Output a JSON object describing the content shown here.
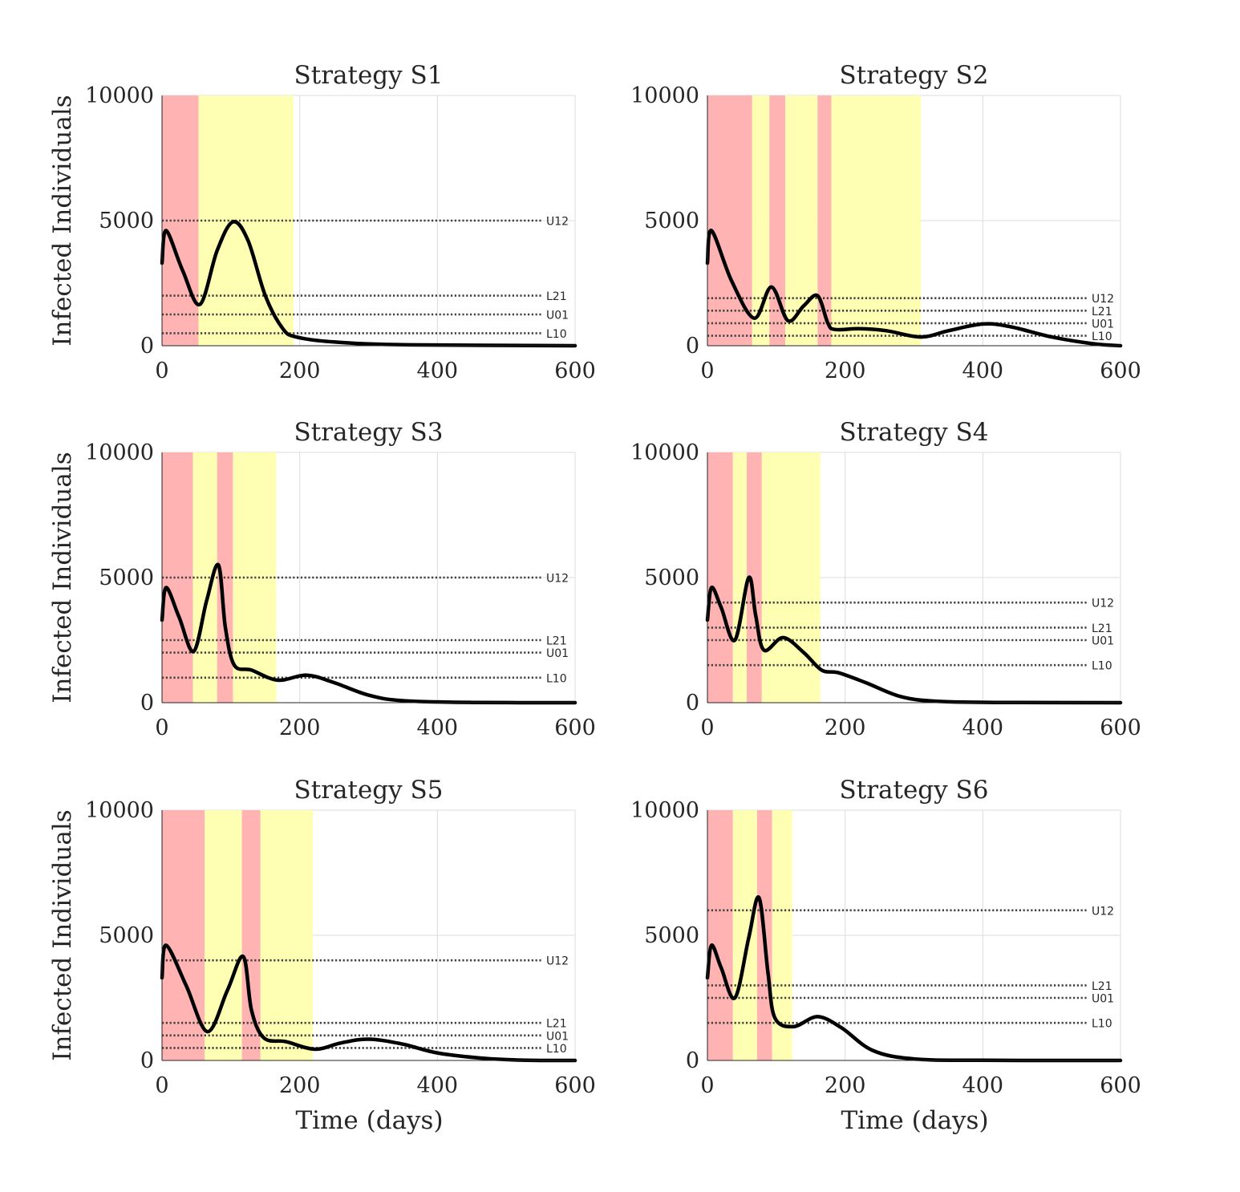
{
  "figure": {
    "xlabel": "Time (days)",
    "ylabel": "Infected Individuals"
  },
  "colors": {
    "strict_band": "#ffb3b3",
    "moderate_band": "#ffffb3",
    "curve": "#000000",
    "threshold": "#404040",
    "grid": "#dcdcdc"
  },
  "chart_data": [
    {
      "type": "line",
      "title": "Strategy S1",
      "xlim": [
        0,
        600
      ],
      "ylim": [
        0,
        10000
      ],
      "xticks": [
        0,
        200,
        400,
        600
      ],
      "yticks": [
        0,
        5000,
        10000
      ],
      "grid": true,
      "bands": [
        {
          "x0": 0,
          "x1": 53,
          "level": "strict"
        },
        {
          "x0": 53,
          "x1": 191,
          "level": "moderate"
        }
      ],
      "thresholds": [
        {
          "label": "U12",
          "value": 5000
        },
        {
          "label": "L21",
          "value": 2000
        },
        {
          "label": "U01",
          "value": 1250
        },
        {
          "label": "L10",
          "value": 500
        }
      ],
      "series": [
        {
          "x": [
            0,
            6,
            30,
            55,
            80,
            103,
            125,
            150,
            175,
            195,
            250,
            350,
            600
          ],
          "y": [
            3300,
            4600,
            3000,
            1650,
            3800,
            4950,
            4200,
            2000,
            700,
            350,
            150,
            40,
            0
          ]
        }
      ]
    },
    {
      "type": "line",
      "title": "Strategy S2",
      "xlim": [
        0,
        600
      ],
      "ylim": [
        0,
        10000
      ],
      "xticks": [
        0,
        200,
        400,
        600
      ],
      "yticks": [
        0,
        5000,
        10000
      ],
      "grid": true,
      "bands": [
        {
          "x0": 0,
          "x1": 65,
          "level": "strict"
        },
        {
          "x0": 65,
          "x1": 90,
          "level": "moderate"
        },
        {
          "x0": 90,
          "x1": 113,
          "level": "strict"
        },
        {
          "x0": 113,
          "x1": 160,
          "level": "moderate"
        },
        {
          "x0": 160,
          "x1": 180,
          "level": "strict"
        },
        {
          "x0": 180,
          "x1": 310,
          "level": "moderate"
        }
      ],
      "thresholds": [
        {
          "label": "U12",
          "value": 1900
        },
        {
          "label": "L21",
          "value": 1400
        },
        {
          "label": "U01",
          "value": 900
        },
        {
          "label": "L10",
          "value": 400
        }
      ],
      "series": [
        {
          "x": [
            0,
            6,
            35,
            68,
            93,
            117,
            140,
            160,
            175,
            185,
            220,
            260,
            310,
            350,
            400,
            440,
            500,
            560,
            600
          ],
          "y": [
            3300,
            4600,
            2600,
            1100,
            2350,
            1000,
            1600,
            2000,
            900,
            650,
            680,
            600,
            350,
            600,
            870,
            760,
            350,
            80,
            0
          ]
        }
      ]
    },
    {
      "type": "line",
      "title": "Strategy S3",
      "xlim": [
        0,
        600
      ],
      "ylim": [
        0,
        10000
      ],
      "xticks": [
        0,
        200,
        400,
        600
      ],
      "yticks": [
        0,
        5000,
        10000
      ],
      "grid": true,
      "bands": [
        {
          "x0": 0,
          "x1": 45,
          "level": "strict"
        },
        {
          "x0": 45,
          "x1": 80,
          "level": "moderate"
        },
        {
          "x0": 80,
          "x1": 103,
          "level": "strict"
        },
        {
          "x0": 103,
          "x1": 166,
          "level": "moderate"
        }
      ],
      "thresholds": [
        {
          "label": "U12",
          "value": 5000
        },
        {
          "label": "L21",
          "value": 2500
        },
        {
          "label": "U01",
          "value": 2000
        },
        {
          "label": "L10",
          "value": 1000
        }
      ],
      "series": [
        {
          "x": [
            0,
            6,
            25,
            46,
            65,
            82,
            92,
            105,
            130,
            168,
            210,
            250,
            300,
            350,
            450,
            600
          ],
          "y": [
            3300,
            4600,
            3400,
            2050,
            4100,
            5500,
            3000,
            1500,
            1300,
            900,
            1100,
            800,
            300,
            80,
            10,
            0
          ]
        }
      ]
    },
    {
      "type": "line",
      "title": "Strategy S4",
      "xlim": [
        0,
        600
      ],
      "ylim": [
        0,
        10000
      ],
      "xticks": [
        0,
        200,
        400,
        600
      ],
      "yticks": [
        0,
        5000,
        10000
      ],
      "grid": true,
      "bands": [
        {
          "x0": 0,
          "x1": 37,
          "level": "strict"
        },
        {
          "x0": 37,
          "x1": 57,
          "level": "moderate"
        },
        {
          "x0": 57,
          "x1": 79,
          "level": "strict"
        },
        {
          "x0": 79,
          "x1": 164,
          "level": "moderate"
        }
      ],
      "thresholds": [
        {
          "label": "U12",
          "value": 4000
        },
        {
          "label": "L21",
          "value": 3000
        },
        {
          "label": "U01",
          "value": 2500
        },
        {
          "label": "L10",
          "value": 1500
        }
      ],
      "series": [
        {
          "x": [
            0,
            6,
            20,
            40,
            60,
            70,
            82,
            110,
            140,
            166,
            190,
            230,
            280,
            330,
            420,
            600
          ],
          "y": [
            3300,
            4600,
            3800,
            2500,
            5000,
            3500,
            2100,
            2600,
            2000,
            1300,
            1200,
            800,
            250,
            60,
            10,
            0
          ]
        }
      ]
    },
    {
      "type": "line",
      "title": "Strategy S5",
      "xlim": [
        0,
        600
      ],
      "ylim": [
        0,
        10000
      ],
      "xticks": [
        0,
        200,
        400,
        600
      ],
      "yticks": [
        0,
        5000,
        10000
      ],
      "grid": true,
      "bands": [
        {
          "x0": 0,
          "x1": 62,
          "level": "strict"
        },
        {
          "x0": 62,
          "x1": 116,
          "level": "moderate"
        },
        {
          "x0": 116,
          "x1": 143,
          "level": "strict"
        },
        {
          "x0": 143,
          "x1": 219,
          "level": "moderate"
        }
      ],
      "thresholds": [
        {
          "label": "U12",
          "value": 4000
        },
        {
          "label": "L21",
          "value": 1500
        },
        {
          "label": "U01",
          "value": 1000
        },
        {
          "label": "L10",
          "value": 500
        }
      ],
      "series": [
        {
          "x": [
            0,
            6,
            35,
            66,
            95,
            118,
            130,
            148,
            180,
            222,
            260,
            300,
            350,
            400,
            470,
            530,
            600
          ],
          "y": [
            3300,
            4600,
            3000,
            1150,
            2800,
            4150,
            2000,
            900,
            750,
            450,
            700,
            850,
            650,
            300,
            80,
            10,
            0
          ]
        }
      ]
    },
    {
      "type": "line",
      "title": "Strategy S6",
      "xlim": [
        0,
        600
      ],
      "ylim": [
        0,
        10000
      ],
      "xticks": [
        0,
        200,
        400,
        600
      ],
      "yticks": [
        0,
        5000,
        10000
      ],
      "grid": true,
      "bands": [
        {
          "x0": 0,
          "x1": 37,
          "level": "strict"
        },
        {
          "x0": 37,
          "x1": 72,
          "level": "moderate"
        },
        {
          "x0": 72,
          "x1": 94,
          "level": "strict"
        },
        {
          "x0": 94,
          "x1": 123,
          "level": "moderate"
        }
      ],
      "thresholds": [
        {
          "label": "U12",
          "value": 6000
        },
        {
          "label": "L21",
          "value": 3000
        },
        {
          "label": "U01",
          "value": 2500
        },
        {
          "label": "L10",
          "value": 1500
        }
      ],
      "series": [
        {
          "x": [
            0,
            6,
            20,
            40,
            60,
            75,
            88,
            98,
            125,
            160,
            195,
            240,
            300,
            400,
            600
          ],
          "y": [
            3300,
            4600,
            3700,
            2500,
            4900,
            6500,
            3500,
            1700,
            1350,
            1750,
            1300,
            400,
            60,
            5,
            0
          ]
        }
      ]
    }
  ]
}
